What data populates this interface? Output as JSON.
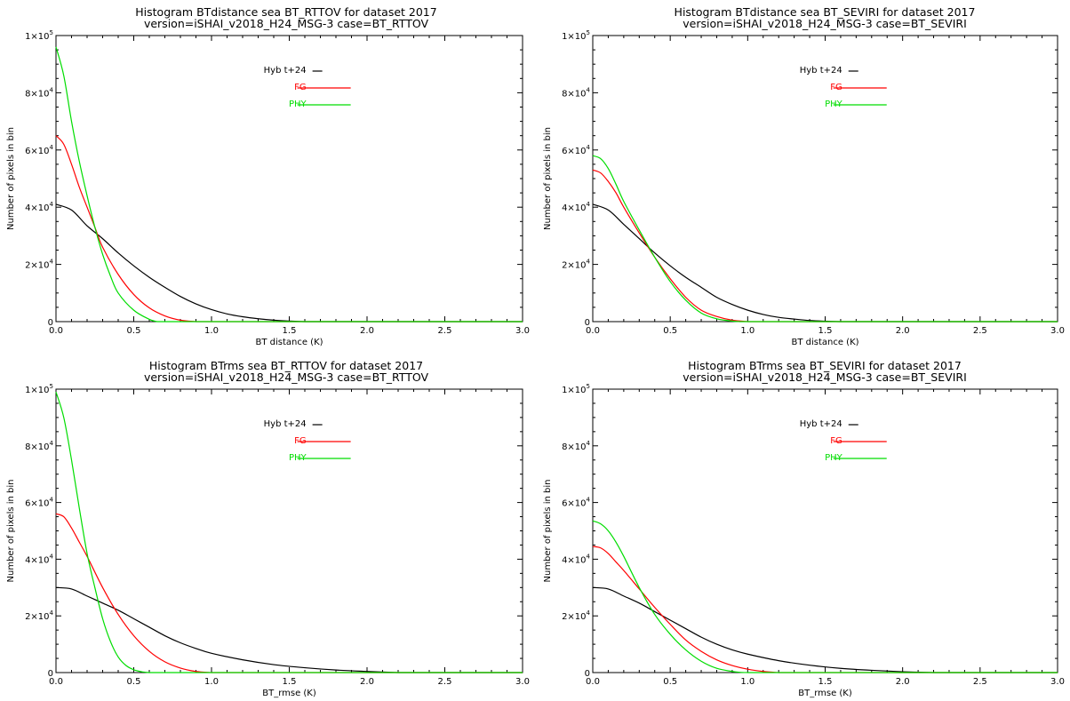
{
  "chart_data": [
    {
      "type": "line",
      "title": "Histogram BTdistance sea BT_RTTOV for dataset 2017",
      "subtitle": "version=iSHAI_v2018_H24_MSG-3 case=BT_RTTOV",
      "xlabel": "BT distance (K)",
      "ylabel": "Number of pixels in bin",
      "xlim": [
        0,
        3.0
      ],
      "ylim": [
        0,
        100000
      ],
      "xticks": [
        "0.0",
        "0.5",
        "1.0",
        "1.5",
        "2.0",
        "2.5",
        "3.0"
      ],
      "yticks": [
        {
          "m": "0",
          "e": ""
        },
        {
          "m": "2×10",
          "e": "4"
        },
        {
          "m": "4×10",
          "e": "4"
        },
        {
          "m": "6×10",
          "e": "4"
        },
        {
          "m": "8×10",
          "e": "4"
        },
        {
          "m": "1×10",
          "e": "5"
        }
      ],
      "legend_position": "top-right",
      "series": [
        {
          "name": "Hyb t+24",
          "color": "#000000",
          "x": [
            0,
            0.1,
            0.2,
            0.3,
            0.4,
            0.5,
            0.6,
            0.7,
            0.8,
            0.9,
            1.0,
            1.1,
            1.2,
            1.3,
            1.4,
            1.5,
            1.6
          ],
          "values": [
            41000,
            39000,
            33500,
            29000,
            24000,
            19500,
            15500,
            12000,
            8800,
            6200,
            4200,
            2700,
            1700,
            1000,
            500,
            200,
            0
          ]
        },
        {
          "name": "FG",
          "color": "#ff0000",
          "x": [
            0,
            0.05,
            0.1,
            0.15,
            0.2,
            0.25,
            0.3,
            0.4,
            0.5,
            0.6,
            0.7,
            0.8,
            0.9
          ],
          "values": [
            65000,
            62000,
            55000,
            47000,
            40000,
            33000,
            26000,
            16500,
            9500,
            4800,
            2000,
            500,
            0
          ]
        },
        {
          "name": "PHY",
          "color": "#00dd00",
          "x": [
            0,
            0.05,
            0.1,
            0.15,
            0.2,
            0.25,
            0.3,
            0.35,
            0.4,
            0.5,
            0.6,
            0.65
          ],
          "values": [
            96000,
            86000,
            70000,
            56000,
            44000,
            33000,
            23500,
            16000,
            10000,
            4000,
            800,
            0
          ]
        }
      ]
    },
    {
      "type": "line",
      "title": "Histogram BTdistance sea BT_SEVIRI for dataset 2017",
      "subtitle": "version=iSHAI_v2018_H24_MSG-3 case=BT_SEVIRI",
      "xlabel": "BT distance (K)",
      "ylabel": "Number of pixels in bin",
      "xlim": [
        0,
        3.0
      ],
      "ylim": [
        0,
        100000
      ],
      "xticks": [
        "0.0",
        "0.5",
        "1.0",
        "1.5",
        "2.0",
        "2.5",
        "3.0"
      ],
      "yticks": [
        {
          "m": "0",
          "e": ""
        },
        {
          "m": "2×10",
          "e": "4"
        },
        {
          "m": "4×10",
          "e": "4"
        },
        {
          "m": "6×10",
          "e": "4"
        },
        {
          "m": "8×10",
          "e": "4"
        },
        {
          "m": "1×10",
          "e": "5"
        }
      ],
      "legend_position": "top-right",
      "series": [
        {
          "name": "Hyb t+24",
          "color": "#000000",
          "x": [
            0,
            0.1,
            0.2,
            0.3,
            0.4,
            0.5,
            0.6,
            0.7,
            0.8,
            0.9,
            1.0,
            1.1,
            1.2,
            1.3,
            1.4,
            1.5,
            1.6
          ],
          "values": [
            41000,
            39000,
            34000,
            29000,
            24000,
            19500,
            15500,
            12000,
            8500,
            6000,
            4000,
            2500,
            1500,
            900,
            400,
            150,
            0
          ]
        },
        {
          "name": "FG",
          "color": "#ff0000",
          "x": [
            0,
            0.05,
            0.1,
            0.15,
            0.2,
            0.3,
            0.4,
            0.5,
            0.6,
            0.7,
            0.8,
            0.9,
            1.0
          ],
          "values": [
            53000,
            52000,
            49000,
            45000,
            40000,
            31000,
            22500,
            15000,
            8500,
            4000,
            1800,
            500,
            0
          ]
        },
        {
          "name": "PHY",
          "color": "#00dd00",
          "x": [
            0,
            0.05,
            0.1,
            0.15,
            0.2,
            0.3,
            0.4,
            0.5,
            0.6,
            0.7,
            0.8,
            0.9,
            0.95
          ],
          "values": [
            58000,
            57000,
            53500,
            48000,
            42000,
            32000,
            22500,
            14000,
            7500,
            3000,
            1000,
            200,
            0
          ]
        }
      ]
    },
    {
      "type": "line",
      "title": "Histogram BTrms sea BT_RTTOV for dataset 2017",
      "subtitle": "version=iSHAI_v2018_H24_MSG-3 case=BT_RTTOV",
      "xlabel": "BT_rmse (K)",
      "ylabel": "Number of pixels in bin",
      "xlim": [
        0,
        3.0
      ],
      "ylim": [
        0,
        100000
      ],
      "xticks": [
        "0.0",
        "0.5",
        "1.0",
        "1.5",
        "2.0",
        "2.5",
        "3.0"
      ],
      "yticks": [
        {
          "m": "0",
          "e": ""
        },
        {
          "m": "2×10",
          "e": "4"
        },
        {
          "m": "4×10",
          "e": "4"
        },
        {
          "m": "6×10",
          "e": "4"
        },
        {
          "m": "8×10",
          "e": "4"
        },
        {
          "m": "1×10",
          "e": "5"
        }
      ],
      "legend_position": "top-right",
      "series": [
        {
          "name": "Hyb t+24",
          "color": "#000000",
          "x": [
            0,
            0.1,
            0.2,
            0.3,
            0.4,
            0.5,
            0.6,
            0.7,
            0.8,
            0.9,
            1.0,
            1.2,
            1.4,
            1.6,
            1.8,
            2.0,
            2.2
          ],
          "values": [
            30000,
            29500,
            27000,
            24500,
            22000,
            19000,
            16000,
            13000,
            10500,
            8500,
            6800,
            4500,
            2800,
            1700,
            900,
            400,
            0
          ]
        },
        {
          "name": "FG",
          "color": "#ff0000",
          "x": [
            0,
            0.05,
            0.1,
            0.15,
            0.2,
            0.3,
            0.4,
            0.5,
            0.6,
            0.7,
            0.8,
            0.9,
            1.0
          ],
          "values": [
            56000,
            55000,
            51000,
            46000,
            41000,
            30000,
            20500,
            13000,
            7500,
            3800,
            1600,
            400,
            0
          ]
        },
        {
          "name": "PHY",
          "color": "#00dd00",
          "x": [
            0,
            0.05,
            0.1,
            0.15,
            0.2,
            0.25,
            0.3,
            0.35,
            0.4,
            0.45,
            0.5,
            0.55,
            0.6
          ],
          "values": [
            99000,
            90000,
            75000,
            58000,
            42000,
            30000,
            19000,
            11000,
            5500,
            2500,
            1000,
            300,
            0
          ]
        }
      ]
    },
    {
      "type": "line",
      "title": "Histogram BTrms sea BT_SEVIRI for dataset 2017",
      "subtitle": "version=iSHAI_v2018_H24_MSG-3 case=BT_SEVIRI",
      "xlabel": "BT_rmse (K)",
      "ylabel": "Number of pixels in bin",
      "xlim": [
        0,
        3.0
      ],
      "ylim": [
        0,
        100000
      ],
      "xticks": [
        "0.0",
        "0.5",
        "1.0",
        "1.5",
        "2.0",
        "2.5",
        "3.0"
      ],
      "yticks": [
        {
          "m": "0",
          "e": ""
        },
        {
          "m": "2×10",
          "e": "4"
        },
        {
          "m": "4×10",
          "e": "4"
        },
        {
          "m": "6×10",
          "e": "4"
        },
        {
          "m": "8×10",
          "e": "4"
        },
        {
          "m": "1×10",
          "e": "5"
        }
      ],
      "legend_position": "top-right",
      "series": [
        {
          "name": "Hyb t+24",
          "color": "#000000",
          "x": [
            0,
            0.1,
            0.2,
            0.3,
            0.4,
            0.5,
            0.6,
            0.7,
            0.8,
            0.9,
            1.0,
            1.2,
            1.4,
            1.6,
            1.8,
            2.0,
            2.2
          ],
          "values": [
            30000,
            29500,
            27000,
            24500,
            21500,
            18500,
            15500,
            12500,
            10000,
            8000,
            6500,
            4200,
            2600,
            1500,
            800,
            300,
            0
          ]
        },
        {
          "name": "FG",
          "color": "#ff0000",
          "x": [
            0,
            0.05,
            0.1,
            0.15,
            0.2,
            0.3,
            0.4,
            0.5,
            0.6,
            0.7,
            0.8,
            0.9,
            1.0,
            1.1,
            1.2
          ],
          "values": [
            44500,
            44000,
            42000,
            39000,
            36000,
            29500,
            23000,
            17000,
            11500,
            7500,
            4500,
            2500,
            1200,
            400,
            0
          ]
        },
        {
          "name": "PHY",
          "color": "#00dd00",
          "x": [
            0,
            0.05,
            0.1,
            0.15,
            0.2,
            0.3,
            0.4,
            0.5,
            0.6,
            0.7,
            0.8,
            0.9,
            0.95,
            1.0
          ],
          "values": [
            53500,
            52500,
            50000,
            46000,
            41000,
            30000,
            20500,
            13500,
            8000,
            4000,
            1500,
            400,
            100,
            0
          ]
        }
      ]
    }
  ]
}
